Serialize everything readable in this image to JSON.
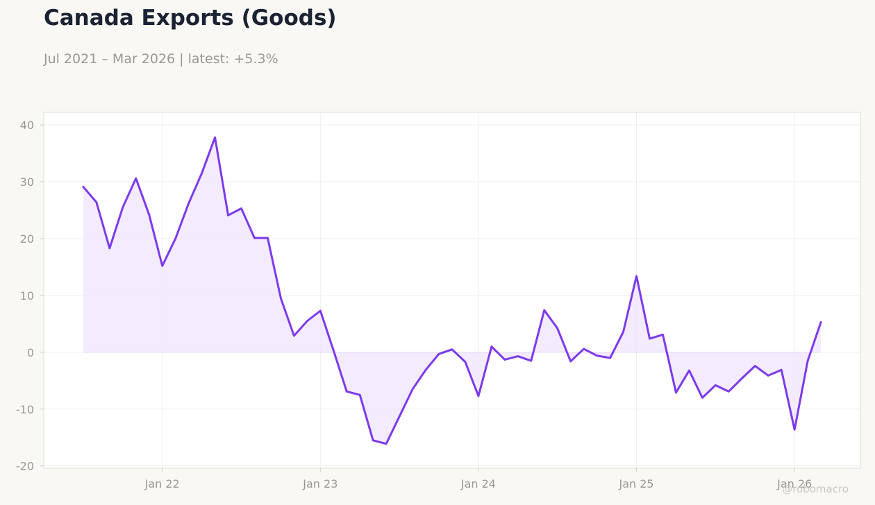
{
  "header": {
    "title": "Canada Exports (Goods)",
    "subtitle": "Jul 2021 – Mar 2026 | latest: +5.3%"
  },
  "watermark": "@robomacro",
  "colors": {
    "background": "#f9f8f5",
    "plot_background": "#ffffff",
    "line": "#7c3aed",
    "fill": "#ede5fd",
    "grid": "#efefef",
    "frame": "#dedcd6",
    "tick_text": "#9a9893",
    "title_text": "#1b2333"
  },
  "chart_data": {
    "type": "area",
    "title": "Canada Exports (Goods)",
    "subtitle": "Jul 2021 – Mar 2026 | latest: +5.3%",
    "xlabel": "",
    "ylabel": "",
    "x_start": "2021-07",
    "x_ticks": [
      {
        "label": "Jan 22",
        "date": "2022-01"
      },
      {
        "label": "Jan 23",
        "date": "2023-01"
      },
      {
        "label": "Jan 24",
        "date": "2024-01"
      },
      {
        "label": "Jan 25",
        "date": "2025-01"
      },
      {
        "label": "Jan 26",
        "date": "2026-01"
      }
    ],
    "y_ticks": [
      40,
      30,
      20,
      10,
      0,
      -10,
      -20
    ],
    "ylim": [
      -20.4,
      42.2
    ],
    "xlim": [
      "2021-04",
      "2026-06"
    ],
    "grid": true,
    "legend": "none",
    "series": [
      {
        "values": [
          29.1,
          26.4,
          18.3,
          25.5,
          30.6,
          24.2,
          15.2,
          20.0,
          26.2,
          31.5,
          37.8,
          24.1,
          25.3,
          20.1,
          20.1,
          9.5,
          2.9,
          5.5,
          7.3,
          0.3,
          -6.9,
          -7.5,
          -15.5,
          -16.1,
          -11.3,
          -6.5,
          -3.1,
          -0.3,
          0.5,
          -1.7,
          -7.7,
          1.0,
          -1.3,
          -0.7,
          -1.5,
          7.4,
          4.2,
          -1.6,
          0.6,
          -0.6,
          -1.0,
          3.6,
          13.4,
          2.4,
          3.1,
          -7.1,
          -3.2,
          -8.0,
          -5.8,
          -6.9,
          -4.6,
          -2.4,
          -4.1,
          -3.1,
          -13.6,
          -1.5,
          5.3
        ]
      }
    ]
  }
}
